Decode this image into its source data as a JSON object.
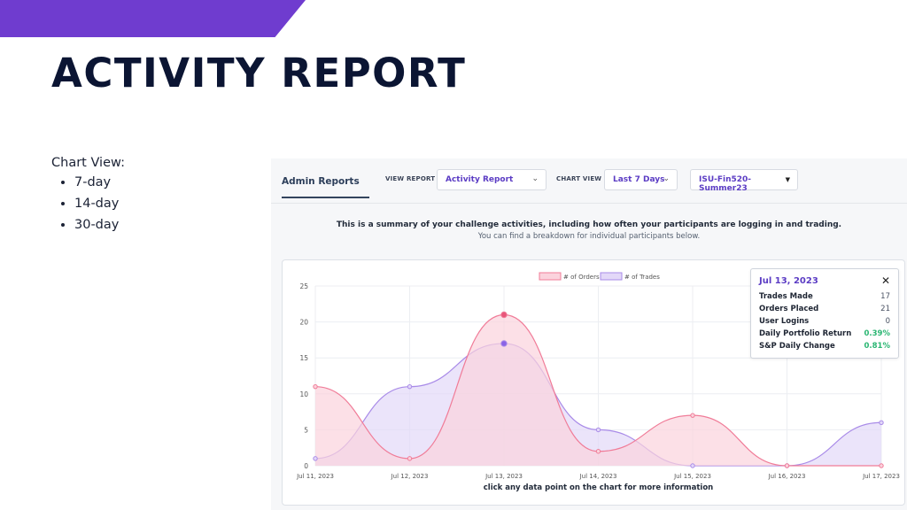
{
  "slide": {
    "title": "ACTIVITY REPORT",
    "notes_heading": "Chart View:",
    "notes_items": [
      "7-day",
      "14-day",
      "30-day"
    ]
  },
  "app": {
    "tab": "Admin Reports",
    "view_report_label": "VIEW REPORT",
    "view_report_value": "Activity Report",
    "chart_view_label": "CHART VIEW",
    "chart_view_value": "Last 7 Days",
    "course_value": "ISU-Fin520-Summer23",
    "summary_line1": "This is a summary of your challenge activities, including how often your participants are logging in and trading.",
    "summary_line2": "You can find a breakdown for individual participants below.",
    "footer_hint": "click any data point on the chart for more information",
    "accent_color": "#5b3cc4",
    "banner_color": "#6f3ccf"
  },
  "tooltip": {
    "date": "Jul 13, 2023",
    "close_icon": "close-icon",
    "rows": [
      {
        "label": "Trades Made",
        "value": "17",
        "highlight": false
      },
      {
        "label": "Orders Placed",
        "value": "21",
        "highlight": false
      },
      {
        "label": "User Logins",
        "value": "0",
        "highlight": false
      },
      {
        "label": "Daily Portfolio Return",
        "value": "0.39%",
        "highlight": true
      },
      {
        "label": "S&P Daily Change",
        "value": "0.81%",
        "highlight": true
      }
    ]
  },
  "chart_data": {
    "type": "area",
    "categories": [
      "Jul 11, 2023",
      "Jul 12, 2023",
      "Jul 13, 2023",
      "Jul 14, 2023",
      "Jul 15, 2023",
      "Jul 16, 2023",
      "Jul 17, 2023"
    ],
    "series": [
      {
        "name": "# of Orders",
        "values": [
          11,
          1,
          21,
          2,
          7,
          0,
          0
        ],
        "color": "#f07c98",
        "fill": "#fbd3dd"
      },
      {
        "name": "# of Trades",
        "values": [
          1,
          11,
          17,
          5,
          0,
          0,
          6
        ],
        "color": "#a98be8",
        "fill": "#e3d8f8"
      }
    ],
    "ylim": [
      0,
      25
    ],
    "yticks": [
      0,
      5,
      10,
      15,
      20,
      25
    ],
    "grid": true,
    "legend": "top-center",
    "highlight_index": 2
  }
}
